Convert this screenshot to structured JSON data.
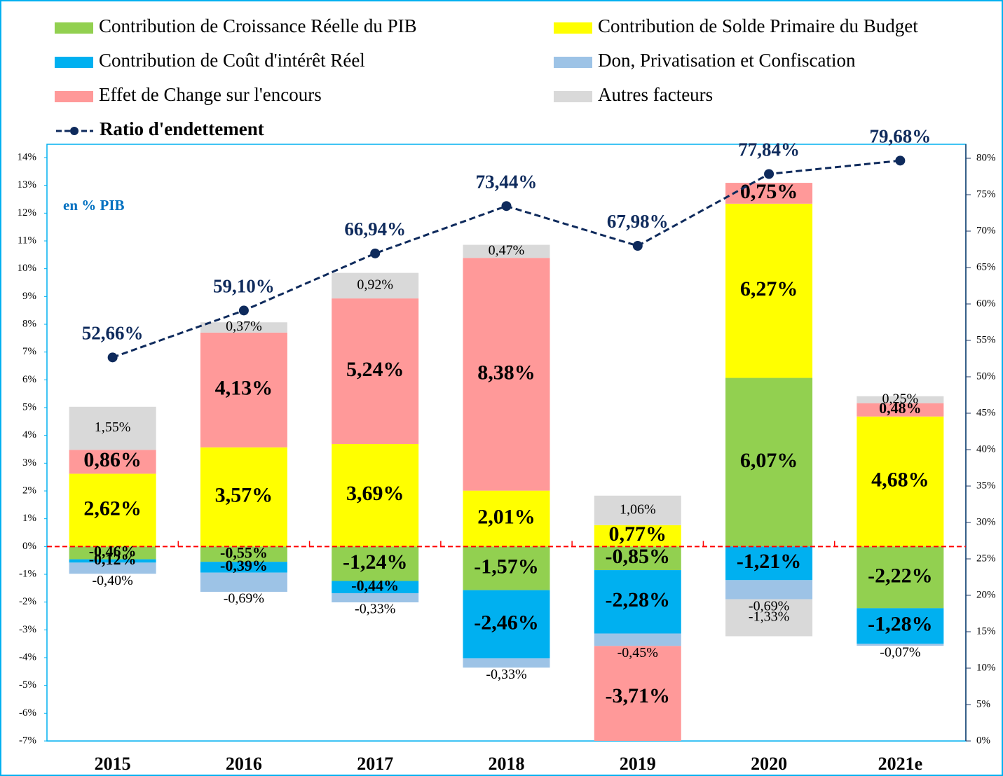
{
  "chart_data": {
    "type": "bar",
    "stacked": true,
    "annotation": "en % PIB",
    "categories": [
      "2015",
      "2016",
      "2017",
      "2018",
      "2019",
      "2020",
      "2021e"
    ],
    "series": [
      {
        "name": "Contribution de Croissance Réelle du PIB",
        "color": "#92d050",
        "values": [
          -0.46,
          -0.55,
          -1.24,
          -1.57,
          -0.85,
          6.07,
          -2.22
        ],
        "value_labels": [
          "-0,46%",
          "-0,55%",
          "-1,24%",
          "-1,57%",
          "-0,85%",
          "6,07%",
          "-2,22%"
        ]
      },
      {
        "name": "Contribution de Solde Primaire du Budget",
        "color": "#ffff00",
        "values": [
          2.62,
          3.57,
          3.69,
          2.01,
          0.77,
          6.27,
          4.68
        ],
        "value_labels": [
          "2,62%",
          "3,57%",
          "3,69%",
          "2,01%",
          "0,77%",
          "6,27%",
          "4,68%"
        ]
      },
      {
        "name": "Contribution de Coût d'intérêt Réel",
        "color": "#00b0f0",
        "values": [
          -0.12,
          -0.39,
          -0.44,
          -2.46,
          -2.28,
          -1.21,
          -1.28
        ],
        "value_labels": [
          "-0,12%",
          "-0,39%",
          "-0,44%",
          "-2,46%",
          "-2,28%",
          "-1,21%",
          "-1,28%"
        ]
      },
      {
        "name": "Don, Privatisation et Confiscation",
        "color": "#9dc3e6",
        "values": [
          -0.4,
          -0.69,
          -0.33,
          -0.33,
          -0.45,
          -0.69,
          -0.07
        ],
        "value_labels": [
          "-0,40%",
          "-0,69%",
          "-0,33%",
          "-0,33%",
          "-0,45%",
          "-0,69%",
          "-0,07%"
        ]
      },
      {
        "name": "Effet de Change sur l'encours",
        "color": "#ff9999",
        "values": [
          0.86,
          4.13,
          5.24,
          8.38,
          -3.71,
          0.75,
          0.48
        ],
        "value_labels": [
          "0,86%",
          "4,13%",
          "5,24%",
          "8,38%",
          "-3,71%",
          "0,75%",
          "0,48%"
        ]
      },
      {
        "name": "Autres facteurs",
        "color": "#d9d9d9",
        "values": [
          1.55,
          0.37,
          0.92,
          0.47,
          1.06,
          -1.33,
          0.25
        ],
        "value_labels": [
          "1,55%",
          "0,37%",
          "0,92%",
          "0,47%",
          "1,06%",
          "-1,33%",
          "0,25%"
        ]
      },
      {
        "name": "Ratio d'endettement",
        "type": "line",
        "axis": "y2",
        "color": "#0e2a5c",
        "values": [
          52.66,
          59.1,
          66.94,
          73.44,
          67.98,
          77.84,
          79.68
        ],
        "value_labels": [
          "52,66%",
          "59,10%",
          "66,94%",
          "73,44%",
          "67,98%",
          "77,84%",
          "79,68%"
        ]
      }
    ],
    "ylim": [
      -7,
      14
    ],
    "yticks": [
      {
        "value": -7,
        "label": "-7%"
      },
      {
        "value": -6,
        "label": "-6%"
      },
      {
        "value": -5,
        "label": "-5%"
      },
      {
        "value": -4,
        "label": "-4%"
      },
      {
        "value": -3,
        "label": "-3%"
      },
      {
        "value": -2,
        "label": "-2%"
      },
      {
        "value": -1,
        "label": "-1%"
      },
      {
        "value": 0,
        "label": "0%"
      },
      {
        "value": 1,
        "label": "1%"
      },
      {
        "value": 2,
        "label": "2%"
      },
      {
        "value": 3,
        "label": "3%"
      },
      {
        "value": 4,
        "label": "4%"
      },
      {
        "value": 5,
        "label": "5%"
      },
      {
        "value": 6,
        "label": "6%"
      },
      {
        "value": 7,
        "label": "7%"
      },
      {
        "value": 8,
        "label": "8%"
      },
      {
        "value": 9,
        "label": "9%"
      },
      {
        "value": 10,
        "label": "10%"
      },
      {
        "value": 11,
        "label": "11%"
      },
      {
        "value": 12,
        "label": "12%"
      },
      {
        "value": 13,
        "label": "13%"
      },
      {
        "value": 14,
        "label": "14%"
      }
    ],
    "y2lim": [
      0,
      80
    ],
    "y2ticks": [
      {
        "value": 0,
        "label": "0%"
      },
      {
        "value": 5,
        "label": "5%"
      },
      {
        "value": 10,
        "label": "10%"
      },
      {
        "value": 15,
        "label": "15%"
      },
      {
        "value": 20,
        "label": "20%"
      },
      {
        "value": 25,
        "label": "25%"
      },
      {
        "value": 30,
        "label": "30%"
      },
      {
        "value": 35,
        "label": "35%"
      },
      {
        "value": 40,
        "label": "40%"
      },
      {
        "value": 45,
        "label": "45%"
      },
      {
        "value": 50,
        "label": "50%"
      },
      {
        "value": 55,
        "label": "55%"
      },
      {
        "value": 60,
        "label": "60%"
      },
      {
        "value": 65,
        "label": "65%"
      },
      {
        "value": 70,
        "label": "70%"
      },
      {
        "value": 75,
        "label": "75%"
      },
      {
        "value": 80,
        "label": "80%"
      }
    ],
    "grid": false,
    "zero_line_color": "#ff0000"
  }
}
